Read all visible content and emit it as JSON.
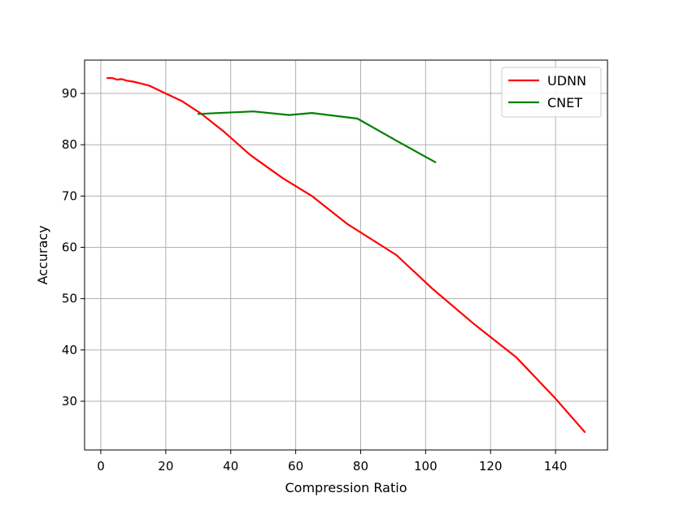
{
  "chart_data": {
    "type": "line",
    "title": "",
    "xlabel": "Compression Ratio",
    "ylabel": "Accuracy",
    "xlim": [
      -5,
      156
    ],
    "ylim": [
      20.5,
      96.5
    ],
    "xticks": [
      0,
      20,
      40,
      60,
      80,
      100,
      120,
      140
    ],
    "yticks": [
      30,
      40,
      50,
      60,
      70,
      80,
      90
    ],
    "grid": true,
    "legend_position": "top-right",
    "series": [
      {
        "name": "UDNN",
        "color": "#ff0000",
        "x": [
          2,
          3.5,
          5,
          6.5,
          8,
          10,
          12,
          15,
          20,
          25,
          31,
          38,
          46,
          56,
          65,
          76,
          91,
          102,
          115,
          128,
          140,
          149
        ],
        "y": [
          93,
          93,
          92.7,
          92.8,
          92.5,
          92.3,
          92,
          91.5,
          90,
          88.5,
          86,
          82.5,
          78,
          73.5,
          70,
          64.5,
          58.5,
          52,
          45,
          38.5,
          30.5,
          24
        ]
      },
      {
        "name": "CNET",
        "color": "#008000",
        "x": [
          30,
          47,
          58,
          65,
          79,
          91,
          103
        ],
        "y": [
          86,
          86.5,
          85.8,
          86.2,
          85.1,
          80.8,
          76.6
        ]
      }
    ]
  }
}
